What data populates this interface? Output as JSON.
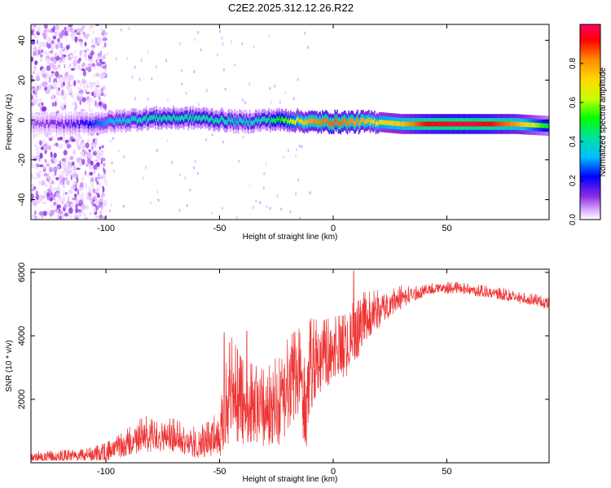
{
  "figure": {
    "title": "C2E2.2025.312.12.26.R22"
  },
  "chart_data": [
    {
      "type": "heatmap",
      "title": "",
      "xlabel": "Height of straight line (km)",
      "ylabel": "Frequency (Hz)",
      "xlim": [
        -133,
        95
      ],
      "ylim": [
        -50,
        48
      ],
      "xticks": [
        -100,
        -50,
        0,
        50
      ],
      "yticks": [
        -40,
        -20,
        0,
        20,
        40
      ],
      "grid": false,
      "colorbar": {
        "label": "Normalized spectral amplitude",
        "range": [
          0,
          1
        ],
        "ticks": [
          0.0,
          0.2,
          0.4,
          0.6,
          0.8
        ],
        "colormap": [
          "#ffffff",
          "#d9a8ff",
          "#8a2be2",
          "#0000ff",
          "#00bfff",
          "#00e0a0",
          "#00ff00",
          "#c8ff00",
          "#ffd700",
          "#ff8c00",
          "#ff0000",
          "#ff0066"
        ]
      },
      "ridge": {
        "description": "dominant spectral line near 0 Hz",
        "x": [
          -133,
          -120,
          -110,
          -100,
          -90,
          -80,
          -70,
          -60,
          -50,
          -40,
          -30,
          -20,
          -10,
          0,
          10,
          20,
          30,
          40,
          50,
          60,
          70,
          80,
          95
        ],
        "y": [
          -2,
          -2,
          -2,
          -1,
          0,
          1,
          1,
          1,
          0,
          -1,
          0,
          0,
          -1,
          -1,
          -1,
          -1,
          -2,
          -2,
          -2,
          -2,
          -2,
          -2,
          -3
        ],
        "amplitude": [
          0.15,
          0.2,
          0.25,
          0.35,
          0.4,
          0.45,
          0.45,
          0.45,
          0.45,
          0.4,
          0.45,
          0.6,
          0.8,
          0.85,
          0.8,
          0.7,
          0.75,
          0.9,
          0.95,
          0.95,
          0.9,
          0.8,
          0.5
        ]
      },
      "noise_region_x": [
        -133,
        -100
      ]
    },
    {
      "type": "line",
      "title": "",
      "xlabel": "Height of straight line (km)",
      "ylabel": "SNR (10 * v/v)",
      "xlim": [
        -133,
        95
      ],
      "ylim": [
        0,
        6100
      ],
      "xticks": [
        -100,
        -50,
        0,
        50
      ],
      "yticks": [
        2000,
        4000,
        6000
      ],
      "grid": false,
      "series": [
        {
          "name": "SNR",
          "color": "#ee3333",
          "x": [
            -133,
            -120,
            -110,
            -100,
            -95,
            -90,
            -85,
            -80,
            -75,
            -70,
            -65,
            -60,
            -55,
            -50,
            -47,
            -45,
            -42,
            -40,
            -35,
            -30,
            -25,
            -22,
            -20,
            -15,
            -12,
            -10,
            -5,
            0,
            5,
            8,
            10,
            15,
            20,
            25,
            30,
            35,
            40,
            45,
            50,
            55,
            60,
            65,
            70,
            75,
            80,
            85,
            90,
            95
          ],
          "y": [
            150,
            200,
            220,
            300,
            450,
            650,
            800,
            900,
            850,
            800,
            700,
            600,
            700,
            900,
            1500,
            2200,
            2000,
            1800,
            1800,
            1600,
            1900,
            1700,
            2400,
            2800,
            1500,
            3000,
            3300,
            3500,
            3600,
            4000,
            4200,
            4600,
            4800,
            5000,
            5200,
            5300,
            5400,
            5500,
            5500,
            5500,
            5450,
            5400,
            5350,
            5300,
            5200,
            5150,
            5100,
            5000
          ],
          "spread": [
            150,
            150,
            150,
            250,
            300,
            350,
            450,
            500,
            450,
            450,
            400,
            400,
            450,
            600,
            1300,
            1400,
            1200,
            1100,
            1000,
            1000,
            1100,
            1200,
            1200,
            1100,
            1200,
            1200,
            900,
            850,
            800,
            1100,
            900,
            600,
            500,
            350,
            300,
            200,
            150,
            150,
            150,
            150,
            150,
            150,
            150,
            150,
            150,
            150,
            150,
            150
          ],
          "peaks": [
            {
              "x": 9,
              "y": 6050
            },
            {
              "x": -48,
              "y": 4100
            },
            {
              "x": -38,
              "y": 4150
            }
          ]
        }
      ]
    }
  ]
}
